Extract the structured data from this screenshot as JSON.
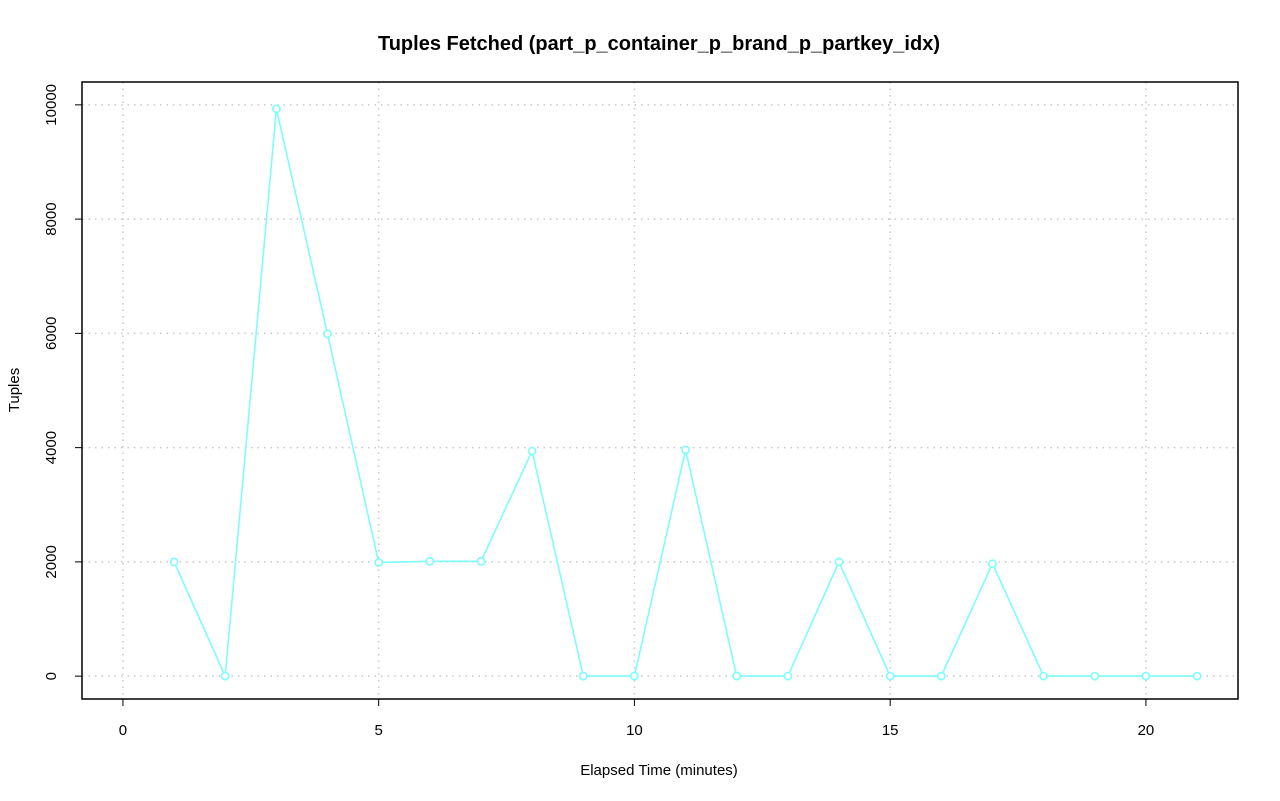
{
  "chart_data": {
    "type": "line",
    "title": "Tuples Fetched (part_p_container_p_brand_p_partkey_idx)",
    "xlabel": "Elapsed Time (minutes)",
    "ylabel": "Tuples",
    "xlim": [
      -0.8,
      21.8
    ],
    "ylim": [
      -400,
      10400
    ],
    "x_ticks": [
      0,
      5,
      10,
      15,
      20
    ],
    "y_ticks": [
      0,
      2000,
      4000,
      6000,
      8000,
      10000
    ],
    "grid": true,
    "series": [
      {
        "color": "#7ffcfc",
        "x": [
          1,
          2,
          3,
          4,
          5,
          6,
          7,
          8,
          9,
          10,
          11,
          12,
          13,
          14,
          15,
          16,
          17,
          18,
          19,
          20,
          21
        ],
        "values": [
          2000,
          0,
          9930,
          5990,
          1990,
          2010,
          2010,
          3940,
          0,
          0,
          3960,
          0,
          0,
          2000,
          0,
          0,
          1970,
          0,
          0,
          0,
          0
        ]
      }
    ]
  }
}
